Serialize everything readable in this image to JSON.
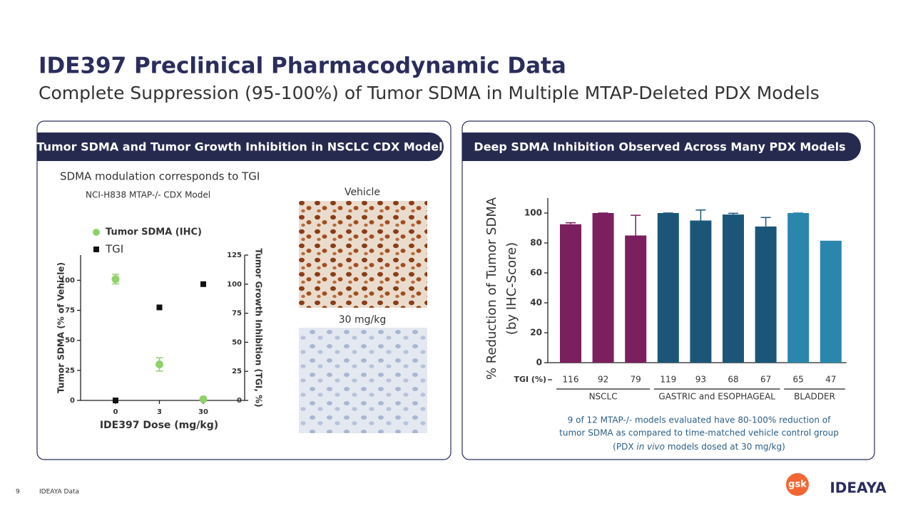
{
  "title": "IDE397 Preclinical Pharmacodynamic Data",
  "subtitle": "Complete Suppression (95-100%) of Tumor SDMA in Multiple MTAP-Deleted PDX Models",
  "left_panel": {
    "header": "Tumor SDMA and  Tumor Growth Inhibition in NSCLC CDX Model",
    "caption": "SDMA modulation corresponds to TGI",
    "model": "NCI-H838 MTAP-/- CDX Model",
    "image_labels": [
      "Vehicle",
      "30 mg/kg"
    ]
  },
  "right_panel": {
    "header": "Deep SDMA Inhibition Observed Across Many PDX Models",
    "note": [
      "9 of 12 MTAP-/- models evaluated have 80-100% reduction of",
      "tumor SDMA as compared to time-matched vehicle control group",
      {
        "before": "(PDX ",
        "italic": "in vivo",
        "after": " models dosed at 30 mg/kg)"
      }
    ]
  },
  "footer": {
    "page": "9",
    "source": "IDEAYA Data",
    "logos": [
      "gsk",
      "IDEAYA"
    ]
  },
  "chart_data": [
    {
      "type": "scatter",
      "x_label": "IDE397 Dose (mg/kg)",
      "y_label": "Tumor SDMA (% of Vehicle)",
      "y2_label": "Tumor Growth Inhibition (TGI, %)",
      "categories": [
        "0",
        "3",
        "30"
      ],
      "ylim": [
        0,
        121
      ],
      "yticks": [
        0,
        25,
        50,
        75,
        100
      ],
      "y2lim": [
        0,
        125
      ],
      "y2ticks": [
        0,
        25,
        50,
        75,
        100,
        125
      ],
      "series": [
        {
          "name": "Tumor SDMA (IHC)",
          "color": "#8fd16a",
          "marker": "circle",
          "values": [
            101,
            30,
            1
          ],
          "errors": [
            4,
            5.5,
            0.5
          ]
        },
        {
          "name": "TGI",
          "color": "#111111",
          "marker": "square",
          "axis": "y2",
          "values": [
            0,
            80,
            100
          ]
        }
      ]
    },
    {
      "type": "bar",
      "y_label": [
        "% Reduction of Tumor SDMA",
        "(by IHC-Score)"
      ],
      "x_label": "TGI (%)",
      "categories": [
        "116",
        "92",
        "79",
        "119",
        "93",
        "68",
        "67",
        "65",
        "47"
      ],
      "ylim": [
        0,
        110
      ],
      "yticks": [
        0,
        20,
        40,
        60,
        80,
        100
      ],
      "series": [
        {
          "name": "NSCLC",
          "color": "#7b1f5e",
          "values": [
            92.5,
            100,
            85,
            null,
            null,
            null,
            null,
            null,
            null
          ],
          "errors": [
            1,
            0,
            13.5,
            null,
            null,
            null,
            null,
            null,
            null
          ]
        },
        {
          "name": "GASTRIC and ESOPHAGEAL",
          "color": "#1b5678",
          "values": [
            null,
            null,
            null,
            100,
            95,
            99,
            91,
            null,
            null
          ],
          "errors": [
            null,
            null,
            null,
            0,
            7,
            0.8,
            6,
            null,
            null
          ]
        },
        {
          "name": "BLADDER",
          "color": "#2a86ad",
          "values": [
            null,
            null,
            null,
            null,
            null,
            null,
            null,
            100,
            81.5
          ],
          "errors": [
            null,
            null,
            null,
            null,
            null,
            null,
            null,
            0,
            null
          ]
        }
      ]
    }
  ]
}
